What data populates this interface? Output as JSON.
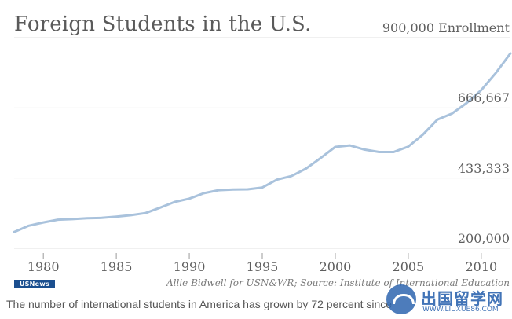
{
  "header": {
    "title": "Foreign Students in the U.S."
  },
  "chart_data": {
    "type": "line",
    "title": "Foreign Students in the U.S.",
    "ylabel": "Enrollment",
    "xlim": [
      1978,
      2012
    ],
    "ylim": [
      200000,
      900000
    ],
    "yticks": [
      {
        "value": 900000,
        "label": "900,000 Enrollment"
      },
      {
        "value": 666667,
        "label": "666,667"
      },
      {
        "value": 433333,
        "label": "433,333"
      },
      {
        "value": 200000,
        "label": "200,000"
      }
    ],
    "xticks": [
      {
        "value": 1980,
        "label": "1980"
      },
      {
        "value": 1985,
        "label": "1985"
      },
      {
        "value": 1990,
        "label": "1990"
      },
      {
        "value": 1995,
        "label": "1995"
      },
      {
        "value": 2000,
        "label": "2000"
      },
      {
        "value": 2005,
        "label": "2005"
      },
      {
        "value": 2010,
        "label": "2010"
      }
    ],
    "grid": true,
    "line_color": "#a9c2dc",
    "x": [
      1978,
      1979,
      1980,
      1981,
      1982,
      1983,
      1984,
      1985,
      1986,
      1987,
      1988,
      1989,
      1990,
      1991,
      1992,
      1993,
      1994,
      1995,
      1996,
      1997,
      1998,
      1999,
      2000,
      2001,
      2002,
      2003,
      2004,
      2005,
      2006,
      2007,
      2008,
      2009,
      2010,
      2011,
      2012
    ],
    "series": [
      {
        "values": [
          254000,
          275000,
          286000,
          295000,
          297000,
          300000,
          301000,
          305000,
          310000,
          317000,
          335000,
          354000,
          365000,
          383000,
          393000,
          395000,
          396000,
          402000,
          428000,
          440000,
          465000,
          500000,
          537000,
          542000,
          528000,
          520000,
          520000,
          538000,
          578000,
          628000,
          648000,
          683000,
          726000,
          783000,
          848000
        ]
      }
    ]
  },
  "footer": {
    "logo_text": "USNews",
    "credit": "Allie Bidwell for USN&WR; Source: Institute of International Education",
    "caption": "The number of international students in America has grown by 72 percent since"
  },
  "watermark": {
    "brand": "出国留学网",
    "url": "WWW.LIUXUE86.COM",
    "color": "#2e66b0"
  }
}
